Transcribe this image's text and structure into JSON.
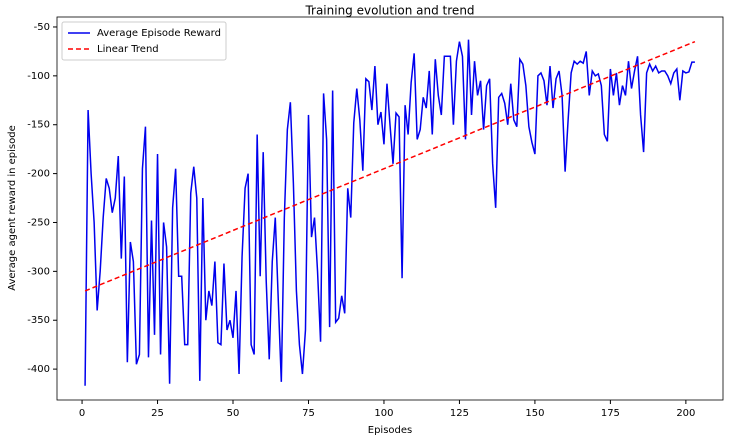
{
  "chart_data": {
    "type": "line",
    "title": "Training evolution and trend",
    "x_label": "Episodes",
    "y_label": "Average agent reward in episode",
    "xlim": [
      -8.3,
      212.3
    ],
    "ylim": [
      -431.6,
      -39.8
    ],
    "xticks": [
      0,
      25,
      50,
      75,
      100,
      125,
      150,
      175,
      200
    ],
    "yticks": [
      -400,
      -350,
      -300,
      -250,
      -200,
      -150,
      -100,
      -50
    ],
    "legend": "upper left",
    "series": [
      {
        "name": "Average Episode Reward",
        "color": "#0000ee",
        "style": "solid",
        "x": [
          1,
          2,
          3,
          4,
          5,
          6,
          7,
          8,
          9,
          10,
          11,
          12,
          13,
          14,
          15,
          16,
          17,
          18,
          19,
          20,
          21,
          22,
          23,
          24,
          25,
          26,
          27,
          28,
          29,
          30,
          31,
          32,
          33,
          34,
          35,
          36,
          37,
          38,
          39,
          40,
          41,
          42,
          43,
          44,
          45,
          46,
          47,
          48,
          49,
          50,
          51,
          52,
          53,
          54,
          55,
          56,
          57,
          58,
          59,
          60,
          61,
          62,
          63,
          64,
          65,
          66,
          67,
          68,
          69,
          70,
          71,
          72,
          73,
          74,
          75,
          76,
          77,
          78,
          79,
          80,
          81,
          82,
          83,
          84,
          85,
          86,
          87,
          88,
          89,
          90,
          91,
          92,
          93,
          94,
          95,
          96,
          97,
          98,
          99,
          100,
          101,
          102,
          103,
          104,
          105,
          106,
          107,
          108,
          109,
          110,
          111,
          112,
          113,
          114,
          115,
          116,
          117,
          118,
          119,
          120,
          121,
          122,
          123,
          124,
          125,
          126,
          127,
          128,
          129,
          130,
          131,
          132,
          133,
          134,
          135,
          136,
          137,
          138,
          139,
          140,
          141,
          142,
          143,
          144,
          145,
          146,
          147,
          148,
          149,
          150,
          151,
          152,
          153,
          154,
          155,
          156,
          157,
          158,
          159,
          160,
          161,
          162,
          163,
          164,
          165,
          166,
          167,
          168,
          169,
          170,
          171,
          172,
          173,
          174,
          175,
          176,
          177,
          178,
          179,
          180,
          181,
          182,
          183,
          184,
          185,
          186,
          187,
          188,
          189,
          190,
          191,
          192,
          193,
          194,
          195,
          196,
          197,
          198,
          199,
          200,
          201,
          202,
          203
        ],
        "values": [
          -417,
          -135,
          -200,
          -250,
          -340,
          -300,
          -245,
          -205,
          -215,
          -240,
          -225,
          -182,
          -287,
          -203,
          -393,
          -270,
          -290,
          -395,
          -385,
          -195,
          -152,
          -388,
          -248,
          -365,
          -180,
          -385,
          -250,
          -275,
          -415,
          -235,
          -195,
          -305,
          -305,
          -375,
          -375,
          -220,
          -193,
          -225,
          -412,
          -225,
          -350,
          -320,
          -335,
          -290,
          -373,
          -375,
          -292,
          -360,
          -350,
          -368,
          -320,
          -405,
          -285,
          -215,
          -200,
          -375,
          -385,
          -160,
          -305,
          -178,
          -310,
          -390,
          -290,
          -245,
          -330,
          -413,
          -245,
          -155,
          -127,
          -210,
          -320,
          -375,
          -405,
          -360,
          -140,
          -265,
          -245,
          -300,
          -372,
          -118,
          -165,
          -357,
          -115,
          -352,
          -348,
          -325,
          -343,
          -215,
          -245,
          -148,
          -113,
          -145,
          -197,
          -103,
          -106,
          -135,
          -90,
          -150,
          -137,
          -170,
          -108,
          -150,
          -190,
          -138,
          -142,
          -307,
          -130,
          -160,
          -107,
          -77,
          -165,
          -155,
          -122,
          -133,
          -95,
          -160,
          -83,
          -120,
          -140,
          -80,
          -80,
          -80,
          -150,
          -85,
          -65,
          -80,
          -165,
          -63,
          -140,
          -85,
          -120,
          -105,
          -155,
          -110,
          -103,
          -190,
          -235,
          -122,
          -118,
          -128,
          -150,
          -108,
          -145,
          -152,
          -83,
          -88,
          -110,
          -152,
          -168,
          -180,
          -100,
          -97,
          -105,
          -130,
          -90,
          -133,
          -103,
          -95,
          -120,
          -198,
          -145,
          -97,
          -85,
          -88,
          -85,
          -87,
          -75,
          -120,
          -95,
          -100,
          -98,
          -110,
          -160,
          -167,
          -93,
          -120,
          -97,
          -130,
          -110,
          -120,
          -85,
          -113,
          -95,
          -80,
          -140,
          -178,
          -97,
          -88,
          -95,
          -90,
          -97,
          -95,
          -95,
          -100,
          -108,
          -97,
          -93,
          -125,
          -95,
          -97,
          -96,
          -86,
          -86
        ]
      },
      {
        "name": "Linear Trend",
        "color": "#ff0000",
        "style": "dashed",
        "x": [
          1,
          203
        ],
        "values": [
          -320,
          -65
        ]
      }
    ]
  }
}
